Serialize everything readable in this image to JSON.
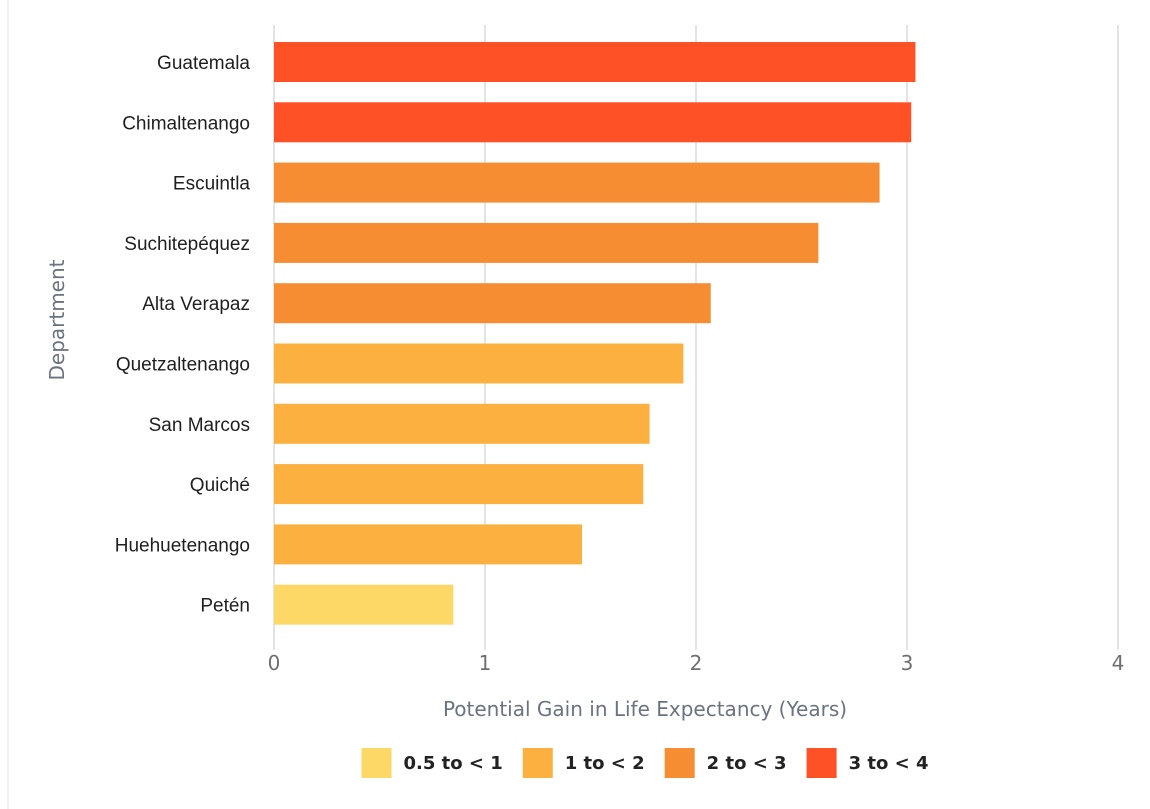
{
  "chart_data": {
    "type": "bar",
    "orientation": "horizontal",
    "xlabel": "Potential Gain in Life Expectancy (Years)",
    "ylabel": "Department",
    "xlim": [
      0,
      4
    ],
    "x_ticks": [
      "0",
      "1",
      "2",
      "3",
      "4"
    ],
    "grid": "vertical",
    "legend_position": "bottom",
    "categories": [
      "Guatemala",
      "Chimaltenango",
      "Escuintla",
      "Suchitepéquez",
      "Alta Verapaz",
      "Quetzaltenango",
      "San Marcos",
      "Quiché",
      "Huehuetenango",
      "Petén"
    ],
    "values": [
      3.04,
      3.02,
      2.87,
      2.58,
      2.07,
      1.94,
      1.78,
      1.75,
      1.46,
      0.85
    ],
    "value_class": [
      "3 to < 4",
      "3 to < 4",
      "2 to < 3",
      "2 to < 3",
      "2 to < 3",
      "1 to < 2",
      "1 to < 2",
      "1 to < 2",
      "1 to < 2",
      "0.5 to < 1"
    ],
    "legend": [
      {
        "label": "0.5 to < 1",
        "color": "#fed866"
      },
      {
        "label": "1 to < 2",
        "color": "#fbb040"
      },
      {
        "label": "2 to < 3",
        "color": "#f68d33"
      },
      {
        "label": "3 to < 4",
        "color": "#ff5026"
      }
    ]
  }
}
